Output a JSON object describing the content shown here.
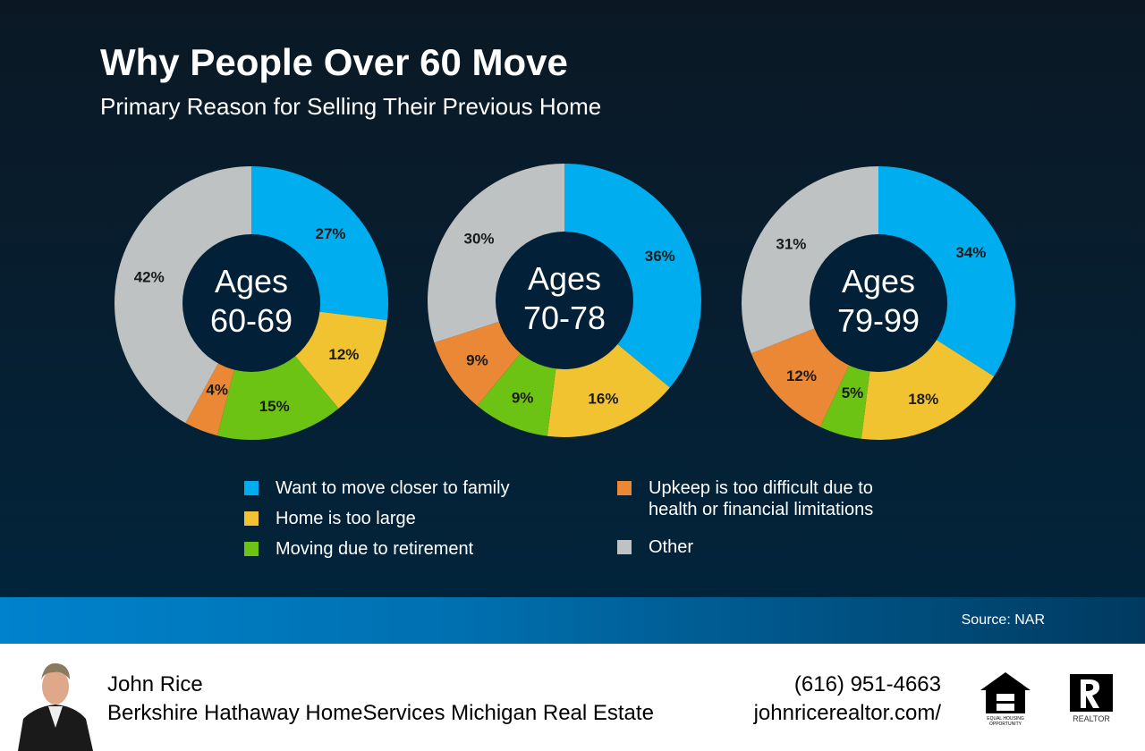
{
  "header": {
    "title": "Why People Over 60 Move",
    "subtitle": "Primary Reason for Selling Their Previous Home"
  },
  "colors": {
    "family": "#00adee",
    "large": "#f2c330",
    "retirement": "#6cc314",
    "upkeep": "#ea8836",
    "other": "#bfc2c3"
  },
  "chart_data": [
    {
      "type": "pie",
      "title": "Ages 60-69",
      "center_label": [
        "Ages",
        "60-69"
      ],
      "categories": [
        "Want to move closer to family",
        "Home is too large",
        "Moving due to retirement",
        "Upkeep is too difficult due to health or financial limitations",
        "Other"
      ],
      "values": [
        27,
        12,
        15,
        4,
        42
      ],
      "labels": [
        "27%",
        "12%",
        "15%",
        "4%",
        "42%"
      ]
    },
    {
      "type": "pie",
      "title": "Ages 70-78",
      "center_label": [
        "Ages",
        "70-78"
      ],
      "categories": [
        "Want to move closer to family",
        "Home is too large",
        "Moving due to retirement",
        "Upkeep is too difficult due to health or financial limitations",
        "Other"
      ],
      "values": [
        36,
        16,
        9,
        9,
        30
      ],
      "labels": [
        "36%",
        "16%",
        "9%",
        "9%",
        "30%"
      ]
    },
    {
      "type": "pie",
      "title": "Ages 79-99",
      "center_label": [
        "Ages",
        "79-99"
      ],
      "categories": [
        "Want to move closer to family",
        "Home is too large",
        "Moving due to retirement",
        "Upkeep is too difficult due to health or financial limitations",
        "Other"
      ],
      "values": [
        34,
        18,
        5,
        12,
        31
      ],
      "labels": [
        "34%",
        "18%",
        "5%",
        "12%",
        "31%"
      ]
    }
  ],
  "legend": [
    {
      "label": "Want to move closer to family",
      "color": "#00adee"
    },
    {
      "label": "Home is too large",
      "color": "#f2c330"
    },
    {
      "label": "Moving due to retirement",
      "color": "#6cc314"
    },
    {
      "label": "Upkeep is too difficult due to",
      "label2": "health or financial limitations",
      "color": "#ea8836"
    },
    {
      "label": "Other",
      "color": "#bfc2c3"
    }
  ],
  "source": "Source: NAR",
  "footer": {
    "name": "John Rice",
    "company": "Berkshire Hathaway HomeServices Michigan Real Estate",
    "phone": "(616) 951-4663",
    "website": "johnricerealtor.com/",
    "eho_text": "EQUAL HOUSING OPPORTUNITY",
    "realtor_text": "REALTOR"
  }
}
